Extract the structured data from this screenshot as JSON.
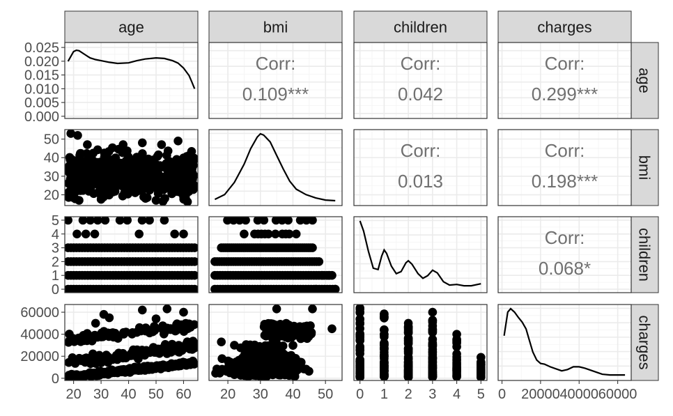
{
  "chart_data": {
    "type": "scatter",
    "layout": "pairs-matrix",
    "variables": [
      "age",
      "bmi",
      "children",
      "charges"
    ],
    "strip_labels": {
      "top": [
        "age",
        "bmi",
        "children",
        "charges"
      ],
      "right": [
        "age",
        "bmi",
        "children",
        "charges"
      ]
    },
    "ranges": {
      "age": [
        16.8,
        65.2
      ],
      "bmi": [
        14.2,
        55.1
      ],
      "children": [
        -0.25,
        5.25
      ],
      "charges": [
        -2000,
        67000
      ]
    },
    "x_ticks": {
      "age": [
        "20",
        "30",
        "40",
        "50",
        "60"
      ],
      "bmi": [
        "20",
        "30",
        "40",
        "50"
      ],
      "children": [
        "0",
        "1",
        "2",
        "3",
        "4",
        "5"
      ],
      "charges": [
        "0",
        "20000",
        "40000",
        "60000"
      ]
    },
    "y_ticks": {
      "age_density": [
        "0.000",
        "0.005",
        "0.010",
        "0.015",
        "0.020",
        "0.025"
      ],
      "bmi": [
        "20",
        "30",
        "40",
        "50"
      ],
      "children": [
        "0",
        "1",
        "2",
        "3",
        "4",
        "5"
      ],
      "charges": [
        "0",
        "20000",
        "40000",
        "60000"
      ]
    },
    "age_density_ylim": [
      -0.0008,
      0.0268
    ],
    "correlations": [
      {
        "row": "age",
        "col": "bmi",
        "label": "Corr:",
        "value": "0.109***"
      },
      {
        "row": "age",
        "col": "children",
        "label": "Corr:",
        "value": "0.042"
      },
      {
        "row": "age",
        "col": "charges",
        "label": "Corr:",
        "value": "0.299***"
      },
      {
        "row": "bmi",
        "col": "children",
        "label": "Corr:",
        "value": "0.013"
      },
      {
        "row": "bmi",
        "col": "charges",
        "label": "Corr:",
        "value": "0.198***"
      },
      {
        "row": "children",
        "col": "charges",
        "label": "Corr:",
        "value": "0.068*"
      }
    ],
    "densities": {
      "age": [
        [
          18,
          0.02
        ],
        [
          20,
          0.0235
        ],
        [
          21,
          0.024
        ],
        [
          22,
          0.0238
        ],
        [
          24,
          0.0225
        ],
        [
          26,
          0.0212
        ],
        [
          28,
          0.0206
        ],
        [
          30,
          0.0202
        ],
        [
          33,
          0.0196
        ],
        [
          36,
          0.0192
        ],
        [
          40,
          0.0194
        ],
        [
          43,
          0.0202
        ],
        [
          46,
          0.0208
        ],
        [
          50,
          0.0212
        ],
        [
          53,
          0.021
        ],
        [
          56,
          0.0202
        ],
        [
          58,
          0.0193
        ],
        [
          60,
          0.0175
        ],
        [
          62,
          0.0148
        ],
        [
          63,
          0.0125
        ],
        [
          64,
          0.01
        ]
      ],
      "bmi": [
        [
          16,
          0.03
        ],
        [
          19,
          0.1
        ],
        [
          22,
          0.28
        ],
        [
          25,
          0.55
        ],
        [
          27,
          0.78
        ],
        [
          29,
          0.95
        ],
        [
          30,
          1.0
        ],
        [
          31,
          0.98
        ],
        [
          33,
          0.88
        ],
        [
          35,
          0.68
        ],
        [
          37,
          0.48
        ],
        [
          39,
          0.3
        ],
        [
          41,
          0.18
        ],
        [
          44,
          0.1
        ],
        [
          47,
          0.05
        ],
        [
          50,
          0.02
        ],
        [
          53,
          0.01
        ]
      ],
      "children": [
        [
          0,
          1.0
        ],
        [
          0.15,
          0.85
        ],
        [
          0.35,
          0.55
        ],
        [
          0.55,
          0.3
        ],
        [
          0.75,
          0.28
        ],
        [
          0.9,
          0.48
        ],
        [
          1.0,
          0.57
        ],
        [
          1.1,
          0.52
        ],
        [
          1.3,
          0.33
        ],
        [
          1.5,
          0.22
        ],
        [
          1.7,
          0.25
        ],
        [
          1.9,
          0.38
        ],
        [
          2.0,
          0.41
        ],
        [
          2.15,
          0.36
        ],
        [
          2.4,
          0.22
        ],
        [
          2.6,
          0.15
        ],
        [
          2.8,
          0.19
        ],
        [
          3.0,
          0.27
        ],
        [
          3.2,
          0.23
        ],
        [
          3.45,
          0.1
        ],
        [
          3.7,
          0.05
        ],
        [
          4.0,
          0.06
        ],
        [
          4.3,
          0.04
        ],
        [
          4.6,
          0.04
        ],
        [
          5.0,
          0.07
        ]
      ],
      "charges": [
        [
          1100,
          0.6
        ],
        [
          3000,
          0.95
        ],
        [
          4500,
          1.0
        ],
        [
          6500,
          0.95
        ],
        [
          8500,
          0.87
        ],
        [
          10500,
          0.8
        ],
        [
          12500,
          0.7
        ],
        [
          14000,
          0.55
        ],
        [
          16000,
          0.36
        ],
        [
          18000,
          0.24
        ],
        [
          20000,
          0.19
        ],
        [
          22000,
          0.18
        ],
        [
          25000,
          0.14
        ],
        [
          28000,
          0.11
        ],
        [
          31000,
          0.08
        ],
        [
          34000,
          0.1
        ],
        [
          37000,
          0.14
        ],
        [
          40000,
          0.14
        ],
        [
          43000,
          0.12
        ],
        [
          46000,
          0.09
        ],
        [
          49000,
          0.06
        ],
        [
          52000,
          0.03
        ],
        [
          56000,
          0.02
        ],
        [
          63800,
          0.02
        ]
      ]
    },
    "scatter": {
      "age_bmi": {
        "description_bands": true,
        "x_extent": [
          18,
          64
        ],
        "y_extent": [
          16,
          53
        ]
      },
      "age_children": {
        "levels": [
          0,
          1,
          2,
          3,
          4,
          5
        ]
      },
      "age_charges": {
        "bands": [
          {
            "x": [
              18,
              64
            ],
            "y": [
              1100,
              14500
            ]
          },
          {
            "x": [
              18,
              64
            ],
            "y": [
              4000,
              26000
            ]
          },
          {
            "x": [
              18,
              64
            ],
            "y": [
              34000,
              52000
            ]
          }
        ]
      },
      "bmi_children": {
        "levels": [
          {
            "children": 0,
            "bmi": [
              16,
              53
            ]
          },
          {
            "children": 1,
            "bmi": [
              16,
              52
            ]
          },
          {
            "children": 2,
            "bmi": [
              16,
              48
            ]
          },
          {
            "children": 3,
            "bmi": [
              18,
              46
            ]
          },
          {
            "children": 4,
            "bmi": [
              25,
              41
            ]
          },
          {
            "children": 5,
            "bmi": [
              18,
              46
            ]
          }
        ]
      },
      "bmi_charges": {
        "x_extent": [
          16,
          53
        ],
        "y_extent": [
          1100,
          63800
        ]
      },
      "children_charges": {
        "columns": [
          {
            "children": 0,
            "max": 63800
          },
          {
            "children": 1,
            "max": 58500
          },
          {
            "children": 2,
            "max": 50000
          },
          {
            "children": 3,
            "max": 60000
          },
          {
            "children": 4,
            "max": 40000
          },
          {
            "children": 5,
            "max": 19000
          }
        ]
      }
    }
  }
}
